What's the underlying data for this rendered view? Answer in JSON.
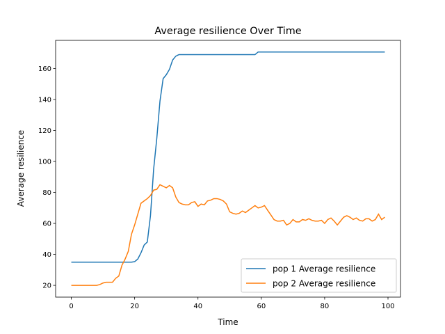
{
  "chart_data": {
    "type": "line",
    "title": "Average resilience Over Time",
    "x_label": "Time",
    "y_label": "Average resilience",
    "x": [
      0,
      1,
      2,
      3,
      4,
      5,
      6,
      7,
      8,
      9,
      10,
      11,
      12,
      13,
      14,
      15,
      16,
      17,
      18,
      19,
      20,
      21,
      22,
      23,
      24,
      25,
      26,
      27,
      28,
      29,
      30,
      31,
      32,
      33,
      34,
      35,
      36,
      37,
      38,
      39,
      40,
      41,
      42,
      43,
      44,
      45,
      46,
      47,
      48,
      49,
      50,
      51,
      52,
      53,
      54,
      55,
      56,
      57,
      58,
      59,
      60,
      61,
      62,
      63,
      64,
      65,
      66,
      67,
      68,
      69,
      70,
      71,
      72,
      73,
      74,
      75,
      76,
      77,
      78,
      79,
      80,
      81,
      82,
      83,
      84,
      85,
      86,
      87,
      88,
      89,
      90,
      91,
      92,
      93,
      94,
      95,
      96,
      97,
      98,
      99
    ],
    "series": [
      {
        "name": "pop 1 Average resilience",
        "color": "#1f77b4",
        "values": [
          35,
          35,
          35,
          35,
          35,
          35,
          35,
          35,
          35,
          35,
          35,
          35,
          35,
          35,
          35,
          35,
          35,
          35,
          35,
          35,
          35.3,
          37,
          41,
          46,
          48,
          65,
          95,
          115,
          139,
          153.5,
          156,
          159.5,
          165.5,
          168,
          169,
          169,
          169,
          169,
          169,
          169,
          169,
          169,
          169,
          169,
          169,
          169,
          169,
          169,
          169,
          169,
          169,
          169,
          169,
          169,
          169,
          169,
          169,
          169,
          169,
          170.7,
          170.7,
          170.7,
          170.7,
          170.7,
          170.7,
          170.7,
          170.7,
          170.7,
          170.7,
          170.7,
          170.7,
          170.7,
          170.7,
          170.7,
          170.7,
          170.7,
          170.7,
          170.7,
          170.7,
          170.7,
          170.7,
          170.7,
          170.7,
          170.7,
          170.7,
          170.7,
          170.7,
          170.7,
          170.7,
          170.7,
          170.7,
          170.7,
          170.7,
          170.7,
          170.7,
          170.7,
          170.7,
          170.7,
          170.7,
          170.7
        ]
      },
      {
        "name": "pop 2 Average resilience",
        "color": "#ff7f0e",
        "values": [
          20,
          20,
          20,
          20,
          20,
          20,
          20,
          20,
          20,
          20.5,
          21.5,
          22,
          22,
          22,
          24.5,
          26,
          33,
          37,
          42,
          53,
          59,
          66,
          73,
          74.5,
          76,
          78,
          81.5,
          82,
          85,
          84,
          83,
          84.5,
          83,
          77,
          73.5,
          72.5,
          72,
          72,
          73.5,
          74,
          71,
          72.5,
          72,
          74.5,
          75,
          76,
          76,
          75.5,
          74.5,
          72.5,
          67.5,
          66.5,
          66,
          66.5,
          68,
          67,
          68.5,
          70,
          71.5,
          70,
          70.5,
          71.5,
          68.5,
          65.5,
          62.5,
          61.5,
          61.5,
          62,
          59,
          60,
          62.5,
          61,
          61,
          62.5,
          62,
          63,
          62,
          61.5,
          61.5,
          62,
          60,
          62.5,
          63.5,
          61.5,
          59,
          61.5,
          64,
          65,
          64,
          62.5,
          63.5,
          62,
          61.5,
          63,
          63,
          61.5,
          62.5,
          66,
          62.5,
          64
        ]
      }
    ],
    "xlim": [
      -4.95,
      103.95
    ],
    "ylim": [
      12.4,
      178.2
    ],
    "xticks": [
      0,
      20,
      40,
      60,
      80,
      100
    ],
    "yticks": [
      20,
      40,
      60,
      80,
      100,
      120,
      140,
      160
    ],
    "grid": false,
    "legend": "lower right"
  }
}
